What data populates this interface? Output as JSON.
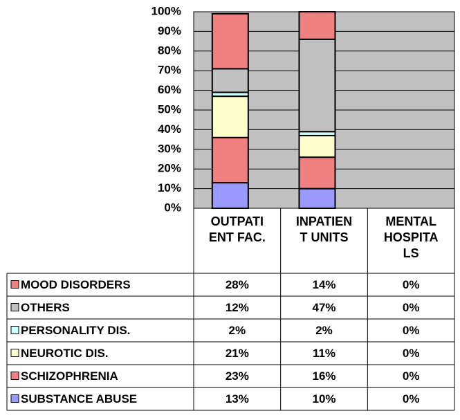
{
  "chart_data": {
    "type": "bar",
    "stacked": true,
    "categories": [
      "OUTPATIENT FAC.",
      "INPATIENT UNITS",
      "MENTAL HOSPITALS"
    ],
    "series": [
      {
        "name": "SUBSTANCE ABUSE",
        "color": "#9999ff",
        "values": [
          13,
          10,
          0
        ],
        "value_labels": [
          "13%",
          "10%",
          "0%"
        ]
      },
      {
        "name": "SCHIZOPHRENIA",
        "color": "#f08080",
        "values": [
          23,
          16,
          0
        ],
        "value_labels": [
          "23%",
          "16%",
          "0%"
        ]
      },
      {
        "name": "NEUROTIC DIS.",
        "color": "#ffffcc",
        "values": [
          21,
          11,
          0
        ],
        "value_labels": [
          "21%",
          "11%",
          "0%"
        ]
      },
      {
        "name": "PERSONALITY DIS.",
        "color": "#ccffff",
        "values": [
          2,
          2,
          0
        ],
        "value_labels": [
          "2%",
          "2%",
          "0%"
        ]
      },
      {
        "name": "OTHERS",
        "color": "#c0c0c0",
        "values": [
          12,
          47,
          0
        ],
        "value_labels": [
          "12%",
          "47%",
          "0%"
        ]
      },
      {
        "name": "MOOD DISORDERS",
        "color": "#f08080",
        "values": [
          28,
          14,
          0
        ],
        "value_labels": [
          "28%",
          "14%",
          "0%"
        ]
      }
    ],
    "ylim": [
      0,
      100
    ],
    "yticks": [
      {
        "value": 0,
        "label": "0%"
      },
      {
        "value": 10,
        "label": "10%"
      },
      {
        "value": 20,
        "label": "20%"
      },
      {
        "value": 30,
        "label": "30%"
      },
      {
        "value": 40,
        "label": "40%"
      },
      {
        "value": 50,
        "label": "50%"
      },
      {
        "value": 60,
        "label": "60%"
      },
      {
        "value": 70,
        "label": "70%"
      },
      {
        "value": 80,
        "label": "80%"
      },
      {
        "value": 90,
        "label": "90%"
      },
      {
        "value": 100,
        "label": "100%"
      }
    ],
    "grid": true,
    "plot_background": "#c0c0c0"
  }
}
